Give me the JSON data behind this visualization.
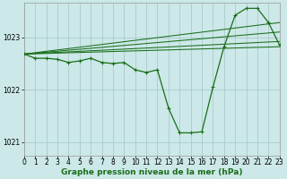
{
  "title": "Graphe pression niveau de la mer (hPa)",
  "background_color": "#cce8e8",
  "grid_color": "#aacccc",
  "line_color": "#1a6e1a",
  "xlim": [
    0,
    23
  ],
  "ylim": [
    1020.75,
    1023.65
  ],
  "yticks": [
    1021,
    1022,
    1023
  ],
  "xticks": [
    0,
    1,
    2,
    3,
    4,
    5,
    6,
    7,
    8,
    9,
    10,
    11,
    12,
    13,
    14,
    15,
    16,
    17,
    18,
    19,
    20,
    21,
    22,
    23
  ],
  "tick_fontsize": 5.5,
  "xlabel_fontsize": 6.5,
  "envelope": [
    [
      [
        0,
        1022.68
      ],
      [
        23,
        1023.28
      ]
    ],
    [
      [
        0,
        1022.68
      ],
      [
        23,
        1023.1
      ]
    ],
    [
      [
        0,
        1022.68
      ],
      [
        23,
        1022.92
      ]
    ],
    [
      [
        0,
        1022.68
      ],
      [
        23,
        1022.82
      ]
    ]
  ],
  "main_series": [
    1022.68,
    1022.6,
    1022.6,
    1022.58,
    1022.52,
    1022.55,
    1022.6,
    1022.52,
    1022.5,
    1022.52,
    1022.38,
    1022.33,
    1022.38,
    1021.65,
    1021.18,
    1021.18,
    1021.2,
    1022.05,
    1022.82,
    1023.42,
    1023.55,
    1023.55,
    1023.28,
    1022.85
  ]
}
